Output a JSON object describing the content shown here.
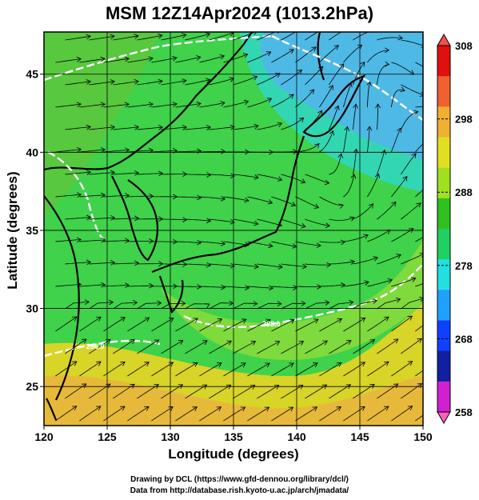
{
  "title": "MSM 12Z14Apr2024 (1013.2hPa)",
  "x_axis": {
    "label": "Longitude (degrees)",
    "range": [
      120,
      150
    ],
    "ticks": [
      120,
      125,
      130,
      135,
      140,
      145,
      150
    ]
  },
  "y_axis": {
    "label": "Latitude  (degrees)",
    "range": [
      22.5,
      47.7
    ],
    "ticks": [
      25,
      30,
      35,
      40,
      45
    ]
  },
  "colorbar": {
    "range": [
      258,
      308
    ],
    "ticks": [
      308,
      298,
      288,
      278,
      268,
      258
    ],
    "colors": [
      "#d020d0",
      "#1020a0",
      "#1040ff",
      "#20a0ff",
      "#20e0e0",
      "#20d060",
      "#30c020",
      "#a0e020",
      "#e0e020",
      "#f0b030",
      "#f06030",
      "#e01010"
    ]
  },
  "contour_labels": [
    "288.0",
    "286.0"
  ],
  "credits": [
    "Drawing by DCL (https://www.gfd-dennou.org/library/dcl/)",
    "Data from http://database.rish.kyoto-u.ac.jp/arch/jmadata/"
  ]
}
